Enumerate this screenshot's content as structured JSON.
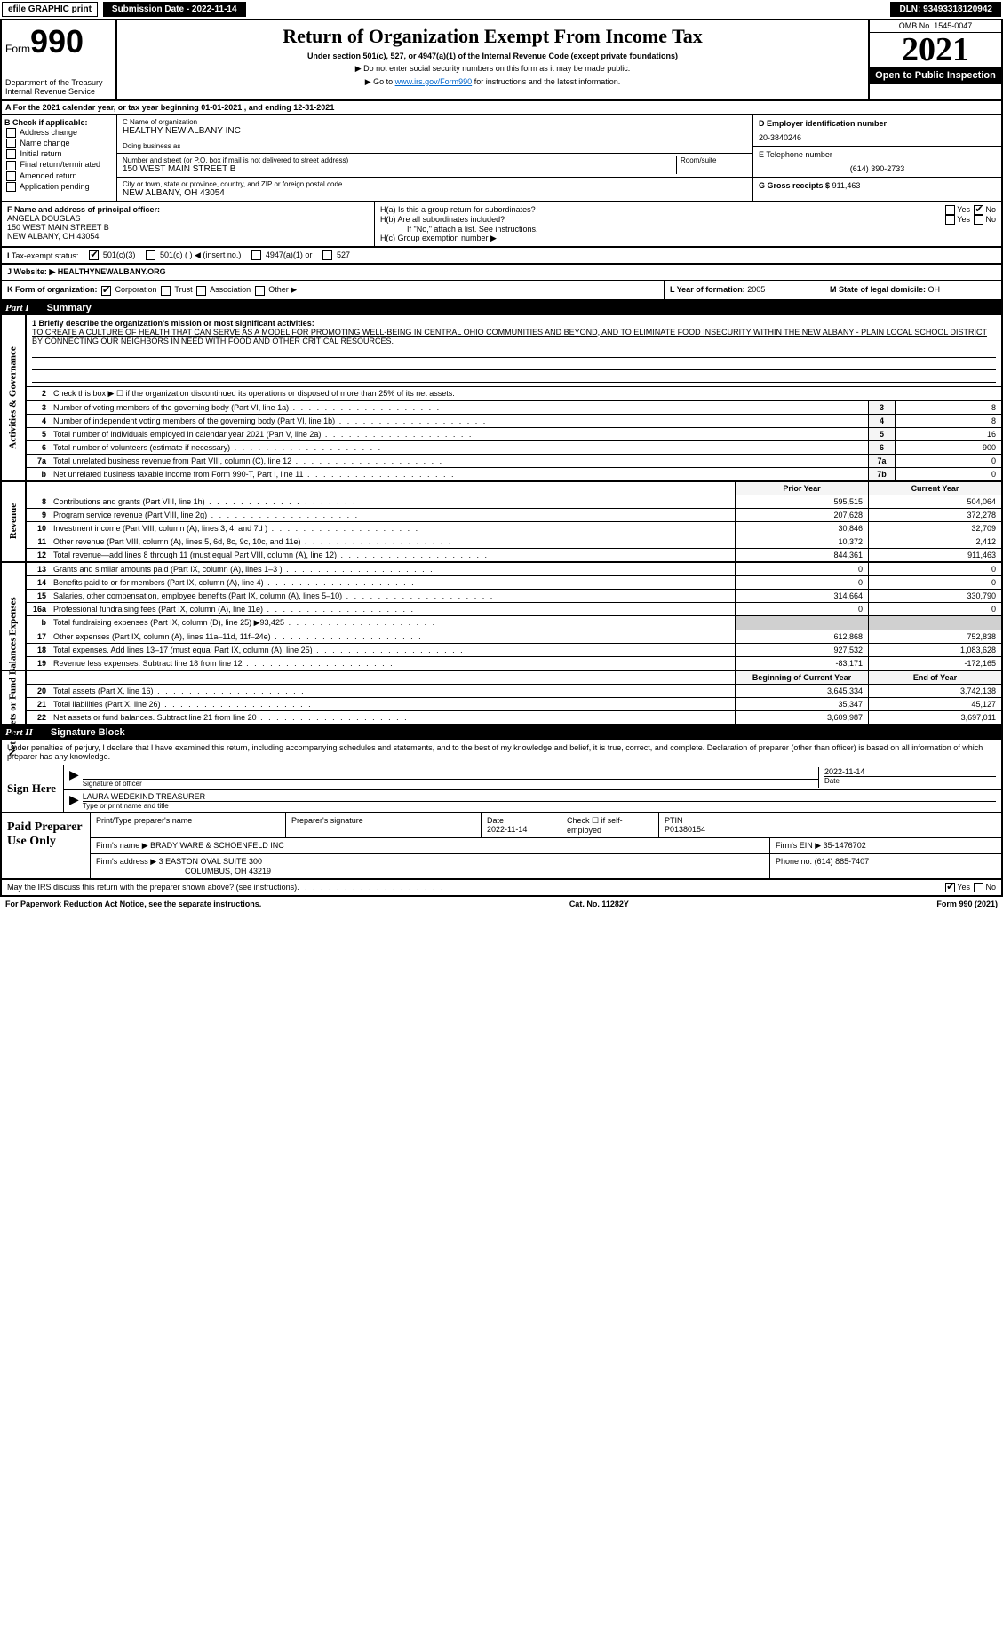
{
  "header": {
    "efile": "efile GRAPHIC print",
    "submission": "Submission Date - 2022-11-14",
    "dln": "DLN: 93493318120942"
  },
  "form_top": {
    "form_word": "Form",
    "form_num": "990",
    "dept1": "Department of the Treasury",
    "dept2": "Internal Revenue Service",
    "title": "Return of Organization Exempt From Income Tax",
    "subtitle": "Under section 501(c), 527, or 4947(a)(1) of the Internal Revenue Code (except private foundations)",
    "line1": "▶ Do not enter social security numbers on this form as it may be made public.",
    "line2_pre": "▶ Go to ",
    "line2_link": "www.irs.gov/Form990",
    "line2_post": " for instructions and the latest information.",
    "omb": "OMB No. 1545-0047",
    "year": "2021",
    "open": "Open to Public Inspection"
  },
  "section_a": "A For the 2021 calendar year, or tax year beginning 01-01-2021    , and ending 12-31-2021",
  "block_b": {
    "title": "B Check if applicable:",
    "items": [
      "Address change",
      "Name change",
      "Initial return",
      "Final return/terminated",
      "Amended return",
      "Application pending"
    ]
  },
  "block_c": {
    "name_label": "C Name of organization",
    "name": "HEALTHY NEW ALBANY INC",
    "dba_label": "Doing business as",
    "dba": "",
    "street_label": "Number and street (or P.O. box if mail is not delivered to street address)",
    "room_label": "Room/suite",
    "street": "150 WEST MAIN STREET B",
    "city_label": "City or town, state or province, country, and ZIP or foreign postal code",
    "city": "NEW ALBANY, OH  43054"
  },
  "block_d": {
    "label": "D Employer identification number",
    "value": "20-3840246",
    "tel_label": "E Telephone number",
    "tel": "(614) 390-2733",
    "gross_label": "G Gross receipts $",
    "gross": "911,463"
  },
  "block_f": {
    "label": "F Name and address of principal officer:",
    "name": "ANGELA DOUGLAS",
    "street": "150 WEST MAIN STREET B",
    "city": "NEW ALBANY, OH  43054"
  },
  "block_h": {
    "ha": "H(a)  Is this a group return for subordinates?",
    "hb": "H(b)  Are all subordinates included?",
    "hb_note": "If \"No,\" attach a list. See instructions.",
    "hc": "H(c)  Group exemption number ▶"
  },
  "tax_exempt": {
    "label": "Tax-exempt status:",
    "opt1": "501(c)(3)",
    "opt2": "501(c) (  ) ◀ (insert no.)",
    "opt3": "4947(a)(1) or",
    "opt4": "527"
  },
  "website": {
    "label": "J  Website: ▶",
    "value": "HEALTHYNEWALBANY.ORG"
  },
  "block_k": {
    "label": "K Form of organization:",
    "opts": [
      "Corporation",
      "Trust",
      "Association",
      "Other ▶"
    ],
    "l_label": "L Year of formation:",
    "l_val": "2005",
    "m_label": "M State of legal domicile:",
    "m_val": "OH"
  },
  "part1": {
    "num": "Part I",
    "title": "Summary"
  },
  "governance": {
    "side": "Activities & Governance",
    "r1_label": "1 Briefly describe the organization's mission or most significant activities:",
    "r1_text": "TO CREATE A CULTURE OF HEALTH THAT CAN SERVE AS A MODEL FOR PROMOTING WELL-BEING IN CENTRAL OHIO COMMUNITIES AND BEYOND, AND TO ELIMINATE FOOD INSECURITY WITHIN THE NEW ALBANY - PLAIN LOCAL SCHOOL DISTRICT BY CONNECTING OUR NEIGHBORS IN NEED WITH FOOD AND OTHER CRITICAL RESOURCES.",
    "r2": "Check this box ▶ ☐ if the organization discontinued its operations or disposed of more than 25% of its net assets.",
    "rows": [
      {
        "n": "3",
        "label": "Number of voting members of the governing body (Part VI, line 1a)",
        "box": "3",
        "val": "8"
      },
      {
        "n": "4",
        "label": "Number of independent voting members of the governing body (Part VI, line 1b)",
        "box": "4",
        "val": "8"
      },
      {
        "n": "5",
        "label": "Total number of individuals employed in calendar year 2021 (Part V, line 2a)",
        "box": "5",
        "val": "16"
      },
      {
        "n": "6",
        "label": "Total number of volunteers (estimate if necessary)",
        "box": "6",
        "val": "900"
      },
      {
        "n": "7a",
        "label": "Total unrelated business revenue from Part VIII, column (C), line 12",
        "box": "7a",
        "val": "0"
      },
      {
        "n": "b",
        "label": "Net unrelated business taxable income from Form 990-T, Part I, line 11",
        "box": "7b",
        "val": "0"
      }
    ]
  },
  "revenue": {
    "side": "Revenue",
    "header_prior": "Prior Year",
    "header_curr": "Current Year",
    "rows": [
      {
        "n": "8",
        "label": "Contributions and grants (Part VIII, line 1h)",
        "prior": "595,515",
        "curr": "504,064"
      },
      {
        "n": "9",
        "label": "Program service revenue (Part VIII, line 2g)",
        "prior": "207,628",
        "curr": "372,278"
      },
      {
        "n": "10",
        "label": "Investment income (Part VIII, column (A), lines 3, 4, and 7d )",
        "prior": "30,846",
        "curr": "32,709"
      },
      {
        "n": "11",
        "label": "Other revenue (Part VIII, column (A), lines 5, 6d, 8c, 9c, 10c, and 11e)",
        "prior": "10,372",
        "curr": "2,412"
      },
      {
        "n": "12",
        "label": "Total revenue—add lines 8 through 11 (must equal Part VIII, column (A), line 12)",
        "prior": "844,361",
        "curr": "911,463"
      }
    ]
  },
  "expenses": {
    "side": "Expenses",
    "rows": [
      {
        "n": "13",
        "label": "Grants and similar amounts paid (Part IX, column (A), lines 1–3 )",
        "prior": "0",
        "curr": "0"
      },
      {
        "n": "14",
        "label": "Benefits paid to or for members (Part IX, column (A), line 4)",
        "prior": "0",
        "curr": "0"
      },
      {
        "n": "15",
        "label": "Salaries, other compensation, employee benefits (Part IX, column (A), lines 5–10)",
        "prior": "314,664",
        "curr": "330,790"
      },
      {
        "n": "16a",
        "label": "Professional fundraising fees (Part IX, column (A), line 11e)",
        "prior": "0",
        "curr": "0"
      },
      {
        "n": "b",
        "label": "Total fundraising expenses (Part IX, column (D), line 25) ▶93,425",
        "prior": "",
        "curr": "",
        "gray": true
      },
      {
        "n": "17",
        "label": "Other expenses (Part IX, column (A), lines 11a–11d, 11f–24e)",
        "prior": "612,868",
        "curr": "752,838"
      },
      {
        "n": "18",
        "label": "Total expenses. Add lines 13–17 (must equal Part IX, column (A), line 25)",
        "prior": "927,532",
        "curr": "1,083,628"
      },
      {
        "n": "19",
        "label": "Revenue less expenses. Subtract line 18 from line 12",
        "prior": "-83,171",
        "curr": "-172,165"
      }
    ]
  },
  "netassets": {
    "side": "Net Assets or Fund Balances",
    "header_prior": "Beginning of Current Year",
    "header_curr": "End of Year",
    "rows": [
      {
        "n": "20",
        "label": "Total assets (Part X, line 16)",
        "prior": "3,645,334",
        "curr": "3,742,138"
      },
      {
        "n": "21",
        "label": "Total liabilities (Part X, line 26)",
        "prior": "35,347",
        "curr": "45,127"
      },
      {
        "n": "22",
        "label": "Net assets or fund balances. Subtract line 21 from line 20",
        "prior": "3,609,987",
        "curr": "3,697,011"
      }
    ]
  },
  "part2": {
    "num": "Part II",
    "title": "Signature Block"
  },
  "sig": {
    "text": "Under penalties of perjury, I declare that I have examined this return, including accompanying schedules and statements, and to the best of my knowledge and belief, it is true, correct, and complete. Declaration of preparer (other than officer) is based on all information of which preparer has any knowledge.",
    "sign_here": "Sign Here",
    "sig_label": "Signature of officer",
    "date_label": "Date",
    "date": "2022-11-14",
    "name": "LAURA WEDEKIND TREASURER",
    "name_label": "Type or print name and title"
  },
  "paid": {
    "title": "Paid Preparer Use Only",
    "h1": "Print/Type preparer's name",
    "h2": "Preparer's signature",
    "h3": "Date",
    "date": "2022-11-14",
    "h4": "Check ☐ if self-employed",
    "h5": "PTIN",
    "ptin": "P01380154",
    "firm_label": "Firm's name    ▶",
    "firm": "BRADY WARE & SCHOENFELD INC",
    "ein_label": "Firm's EIN ▶",
    "ein": "35-1476702",
    "addr_label": "Firm's address ▶",
    "addr1": "3 EASTON OVAL SUITE 300",
    "addr2": "COLUMBUS, OH  43219",
    "phone_label": "Phone no.",
    "phone": "(614) 885-7407"
  },
  "footer": {
    "discuss": "May the IRS discuss this return with the preparer shown above? (see instructions)",
    "paperwork": "For Paperwork Reduction Act Notice, see the separate instructions.",
    "cat": "Cat. No. 11282Y",
    "form": "Form 990 (2021)"
  }
}
